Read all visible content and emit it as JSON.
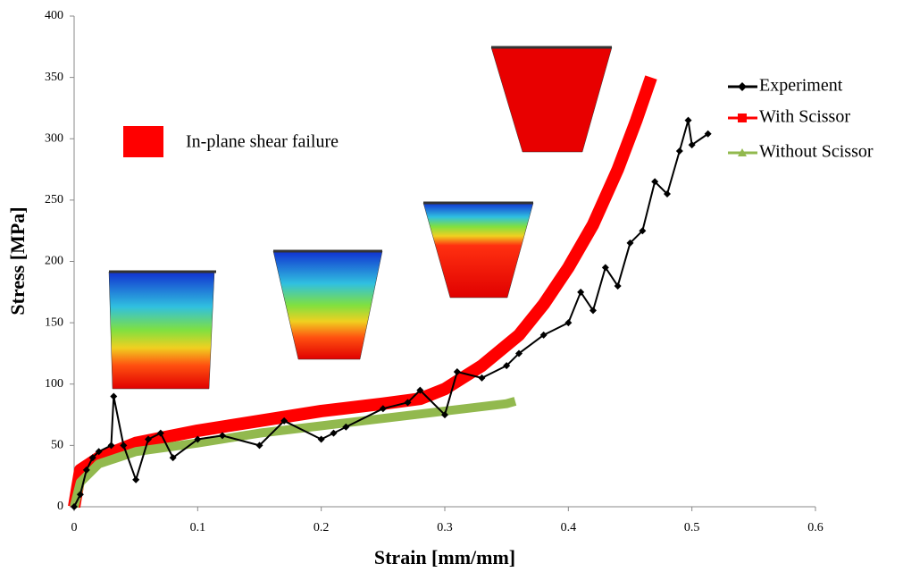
{
  "chart_data": {
    "type": "line",
    "xlabel": "Strain  [mm/mm]",
    "ylabel": "Stress [MPa]",
    "xlim": [
      0,
      0.6
    ],
    "xticks": [
      0,
      0.1,
      0.2,
      0.3,
      0.4,
      0.5,
      0.6
    ],
    "ylim": [
      0,
      400
    ],
    "yticks": [
      0,
      50,
      100,
      150,
      200,
      250,
      300,
      350,
      400
    ],
    "grid": false,
    "legend": "right",
    "annotation": "In-plane shear failure",
    "annotation_color": "#ff0000",
    "series": [
      {
        "name": "Experiment",
        "color": "#000000",
        "marker": "diamond",
        "width": 2,
        "x": [
          0,
          0.005,
          0.01,
          0.015,
          0.02,
          0.03,
          0.032,
          0.04,
          0.05,
          0.06,
          0.07,
          0.08,
          0.1,
          0.12,
          0.15,
          0.17,
          0.2,
          0.21,
          0.22,
          0.25,
          0.27,
          0.28,
          0.3,
          0.31,
          0.33,
          0.35,
          0.36,
          0.38,
          0.4,
          0.41,
          0.42,
          0.43,
          0.44,
          0.45,
          0.46,
          0.47,
          0.48,
          0.49,
          0.497,
          0.5,
          0.513
        ],
        "values": [
          0,
          10,
          30,
          40,
          45,
          50,
          90,
          50,
          22,
          55,
          60,
          40,
          55,
          58,
          50,
          70,
          55,
          60,
          65,
          80,
          85,
          95,
          75,
          110,
          105,
          115,
          125,
          140,
          150,
          175,
          160,
          195,
          180,
          215,
          225,
          265,
          255,
          290,
          315,
          295,
          304
        ]
      },
      {
        "name": "With Scissor",
        "color": "#ff0000",
        "marker": "square",
        "width": 14,
        "x": [
          0,
          0.005,
          0.02,
          0.05,
          0.1,
          0.15,
          0.2,
          0.25,
          0.28,
          0.3,
          0.33,
          0.36,
          0.38,
          0.4,
          0.42,
          0.44,
          0.455,
          0.467
        ],
        "values": [
          0,
          30,
          40,
          52,
          62,
          70,
          78,
          84,
          88,
          96,
          115,
          140,
          165,
          195,
          230,
          275,
          315,
          350
        ]
      },
      {
        "name": "Without Scissor",
        "color": "#92b94e",
        "marker": "triangle",
        "width": 10,
        "x": [
          0,
          0.005,
          0.02,
          0.05,
          0.1,
          0.15,
          0.2,
          0.25,
          0.3,
          0.35,
          0.357
        ],
        "values": [
          0,
          20,
          35,
          45,
          52,
          60,
          66,
          72,
          78,
          84,
          86
        ]
      }
    ]
  }
}
